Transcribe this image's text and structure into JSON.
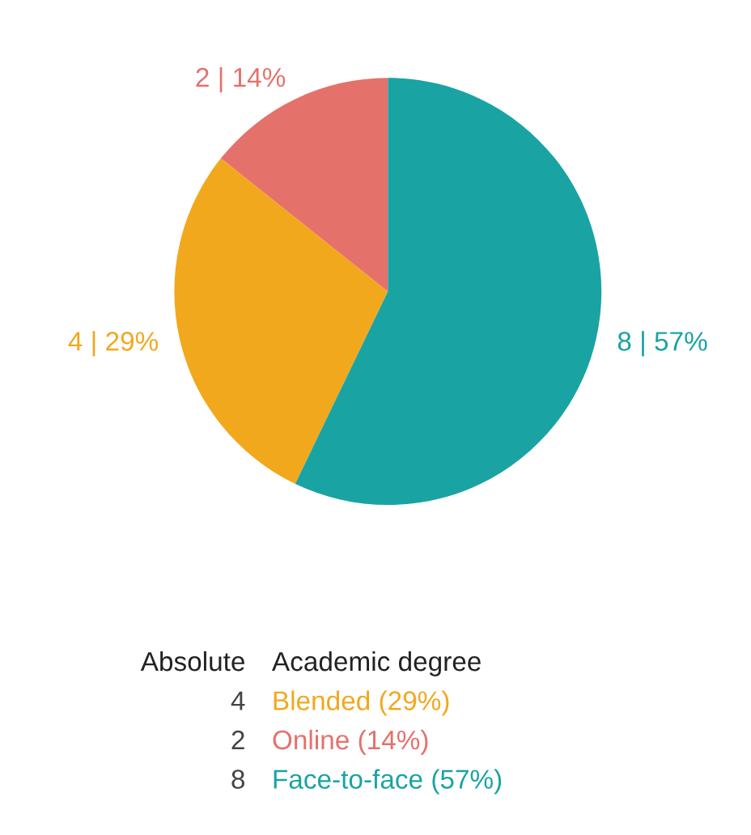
{
  "chart_data": {
    "type": "pie",
    "categories": [
      null,
      null,
      null
    ],
    "values": [
      4,
      2,
      8
    ],
    "value_labels": [
      "4 | 29%",
      "2 | 14%",
      "8 | 57%"
    ],
    "colors": [
      "#f2a81d",
      "#e5716b",
      "#1aa3a3"
    ],
    "annotations": [
      "Absolute",
      "Academic degree",
      "4",
      "Blended (29%)",
      "2",
      "Online (14%)",
      "8",
      "Face-to-face (57%)"
    ]
  }
}
